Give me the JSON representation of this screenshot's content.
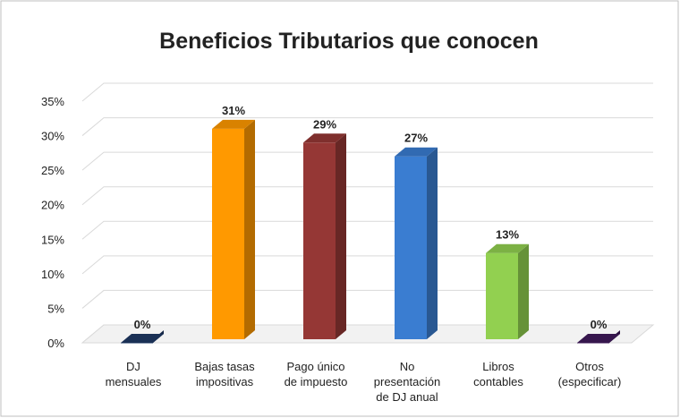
{
  "chart_data": {
    "type": "bar3d",
    "title": "Beneficios Tributarios que conocen",
    "categories": [
      "DJ\nmensuales",
      "Bajas tasas\nimpositivas",
      "Pago único\nde impuesto",
      "No\npresentación\nde DJ anual",
      "Libros\ncontables",
      "Otros\n(especificar)"
    ],
    "values": [
      0,
      31,
      29,
      27,
      13,
      0
    ],
    "value_labels": [
      "0%",
      "31%",
      "29%",
      "27%",
      "13%",
      "0%"
    ],
    "colors": [
      "#1f3864",
      "#ff9900",
      "#953735",
      "#3a7dd1",
      "#92d050",
      "#3f1a5a"
    ],
    "ylim": [
      0,
      35
    ],
    "yticks": [
      {
        "value": 0,
        "label": "0%"
      },
      {
        "value": 5,
        "label": "5%"
      },
      {
        "value": 10,
        "label": "10%"
      },
      {
        "value": 15,
        "label": "15%"
      },
      {
        "value": 20,
        "label": "20%"
      },
      {
        "value": 25,
        "label": "25%"
      },
      {
        "value": 30,
        "label": "30%"
      },
      {
        "value": 35,
        "label": "35%"
      }
    ],
    "grid": true
  }
}
